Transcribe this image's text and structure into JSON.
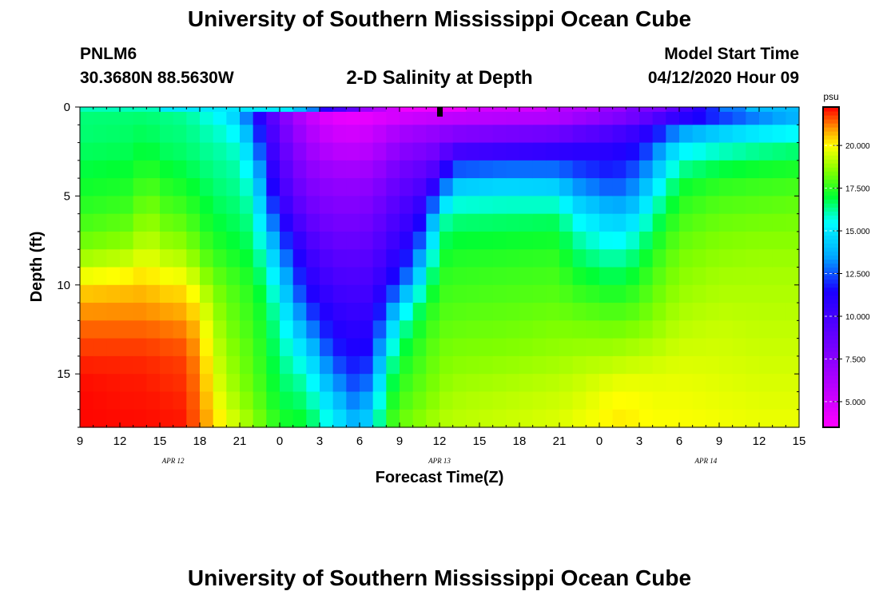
{
  "header": {
    "title": "University of Southern Mississippi Ocean Cube",
    "station": "PNLM6",
    "coords": "30.3680N 88.5630W",
    "subtitle": "2-D Salinity at Depth",
    "start_label": "Model Start Time",
    "start_value": "04/12/2020 Hour 09"
  },
  "footer": {
    "title": "University of Southern Mississippi Ocean Cube"
  },
  "chart_data": {
    "type": "heatmap",
    "title": "2-D Salinity at Depth",
    "xlabel": "Forecast Time(Z)",
    "ylabel": "Depth (ft)",
    "x_tick_labels": [
      "9",
      "12",
      "15",
      "18",
      "21",
      "0",
      "3",
      "6",
      "9",
      "12",
      "15",
      "18",
      "21",
      "0",
      "3",
      "6",
      "9",
      "12",
      "15"
    ],
    "x_range_hours": [
      0,
      54
    ],
    "date_labels": [
      {
        "label": "APR 12",
        "at_hour": 7
      },
      {
        "label": "APR 13",
        "at_hour": 27
      },
      {
        "label": "APR 14",
        "at_hour": 47
      }
    ],
    "y_ticks": [
      0,
      5,
      10,
      15
    ],
    "ylim": [
      0,
      18
    ],
    "y_inverted": true,
    "colorbar": {
      "unit": "psu",
      "range": [
        3.5,
        22.25
      ],
      "ticks": [
        "5.000",
        "7.500",
        "10.000",
        "12.500",
        "15.000",
        "17.500",
        "20.000"
      ],
      "tick_values": [
        5,
        7.5,
        10,
        12.5,
        15,
        17.5,
        20
      ],
      "colors": [
        "#ff00ff",
        "#8a00ff",
        "#1a00ff",
        "#00a6ff",
        "#00ffff",
        "#00ff33",
        "#80ff00",
        "#ffff00",
        "#ff9900",
        "#ff0000"
      ],
      "color_stops": [
        3.5,
        7.5,
        11.5,
        13.5,
        15.5,
        17.0,
        18.5,
        20.0,
        21.0,
        22.25
      ]
    },
    "surface_salinity": [
      16,
      16,
      16,
      16,
      16,
      16,
      15,
      15,
      15,
      15,
      15,
      15,
      15,
      15,
      15,
      15,
      14,
      13,
      11,
      10,
      9,
      7,
      6,
      5,
      4,
      4,
      4,
      4,
      4,
      5,
      5,
      5,
      5,
      5,
      5,
      6,
      6,
      6,
      6,
      7,
      7,
      8,
      8,
      8,
      9,
      10,
      11,
      12,
      13,
      13,
      14,
      14,
      14,
      14,
      15
    ],
    "profiles": [
      {
        "hour": 0,
        "salinity": [
          16.5,
          16.5,
          16.6,
          16.8,
          17.0,
          17.3,
          17.6,
          18.0,
          18.5,
          19.3,
          20.3,
          20.8,
          21.3,
          21.6,
          21.9,
          22.1,
          22.2,
          22.2,
          22.2
        ]
      },
      {
        "hour": 4,
        "salinity": [
          16.5,
          16.6,
          16.7,
          16.9,
          17.2,
          17.5,
          17.9,
          18.4,
          18.9,
          19.7,
          20.5,
          20.9,
          21.3,
          21.6,
          21.9,
          22.0,
          22.1,
          22.1,
          22.2
        ]
      },
      {
        "hour": 5,
        "salinity": [
          16.5,
          16.7,
          16.9,
          17.3,
          17.8,
          18.3,
          18.8,
          19.2,
          19.6,
          20.1,
          20.6,
          20.9,
          21.3,
          21.6,
          21.9,
          22.0,
          22.1,
          22.1,
          22.2
        ]
      },
      {
        "hour": 6,
        "salinity": [
          16.4,
          16.5,
          16.6,
          16.9,
          17.3,
          17.7,
          18.1,
          18.5,
          19.0,
          19.6,
          20.3,
          20.7,
          21.2,
          21.5,
          21.8,
          21.9,
          22.0,
          22.1,
          22.1
        ]
      },
      {
        "hour": 8,
        "salinity": [
          16.2,
          16.4,
          16.5,
          16.7,
          17.0,
          17.4,
          17.8,
          18.3,
          18.8,
          19.4,
          20.2,
          20.6,
          21.0,
          21.4,
          21.7,
          21.8,
          21.9,
          22.0,
          22.1
        ]
      },
      {
        "hour": 9,
        "salinity": [
          15.8,
          16.1,
          16.3,
          16.5,
          16.7,
          17.0,
          17.3,
          17.6,
          18.0,
          18.5,
          19.3,
          19.8,
          20.3,
          20.6,
          20.8,
          21.0,
          21.1,
          21.2,
          21.2
        ]
      },
      {
        "hour": 10,
        "salinity": [
          15.4,
          15.8,
          16.1,
          16.3,
          16.5,
          16.7,
          16.9,
          17.2,
          17.6,
          18.0,
          18.5,
          18.8,
          19.1,
          19.4,
          19.6,
          19.8,
          20.0,
          20.3,
          20.7
        ]
      },
      {
        "hour": 11,
        "salinity": [
          14.8,
          15.5,
          16.0,
          16.2,
          16.3,
          16.5,
          16.7,
          16.9,
          17.2,
          17.6,
          18.0,
          18.2,
          18.4,
          18.6,
          18.8,
          19.0,
          19.2,
          19.5,
          19.9
        ]
      },
      {
        "hour": 12,
        "salinity": [
          13.5,
          14.8,
          15.5,
          16.0,
          16.2,
          16.4,
          16.6,
          16.8,
          17.0,
          17.4,
          17.7,
          17.9,
          18.0,
          18.2,
          18.4,
          18.5,
          18.7,
          19.0,
          19.4
        ]
      },
      {
        "hour": 13,
        "salinity": [
          11.5,
          12.5,
          13.5,
          14.5,
          15.2,
          15.7,
          16.1,
          16.4,
          16.7,
          17.0,
          17.3,
          17.5,
          17.6,
          17.8,
          17.9,
          18.0,
          18.2,
          18.4,
          18.8
        ]
      },
      {
        "hour": 14,
        "salinity": [
          10.0,
          10.5,
          11.0,
          11.5,
          12.2,
          13.0,
          13.8,
          14.6,
          15.3,
          15.9,
          16.4,
          16.8,
          17.0,
          17.1,
          17.3,
          17.4,
          17.6,
          17.8,
          18.1
        ]
      },
      {
        "hour": 15,
        "salinity": [
          8.0,
          8.5,
          9.0,
          9.5,
          9.9,
          10.5,
          11.2,
          12.2,
          13.2,
          14.0,
          14.8,
          15.4,
          15.9,
          16.2,
          16.4,
          16.6,
          16.8,
          17.0,
          17.5
        ]
      },
      {
        "hour": 17,
        "salinity": [
          5.5,
          6.0,
          6.7,
          7.2,
          7.7,
          8.2,
          8.8,
          9.5,
          10.2,
          10.8,
          11.3,
          12.0,
          13.0,
          14.0,
          15.0,
          15.8,
          16.3,
          16.7,
          17.2
        ]
      },
      {
        "hour": 19,
        "salinity": [
          4.0,
          4.8,
          5.5,
          6.3,
          7.0,
          7.5,
          8.0,
          8.5,
          9.0,
          9.5,
          10.0,
          10.5,
          11.0,
          11.5,
          12.2,
          13.0,
          14.0,
          14.8,
          15.5
        ]
      },
      {
        "hour": 21,
        "salinity": [
          3.8,
          4.6,
          5.4,
          6.2,
          7.0,
          7.5,
          8.0,
          8.5,
          9.0,
          9.4,
          9.8,
          10.2,
          10.6,
          11.0,
          11.4,
          11.8,
          12.3,
          13.0,
          13.8
        ]
      },
      {
        "hour": 22,
        "salinity": [
          4.0,
          5.0,
          5.8,
          6.5,
          7.2,
          7.8,
          8.3,
          8.8,
          9.2,
          9.6,
          10.0,
          10.5,
          11.0,
          11.5,
          12.0,
          13.0,
          14.0,
          14.8,
          15.4
        ]
      },
      {
        "hour": 23,
        "salinity": [
          4.1,
          5.5,
          6.4,
          7.2,
          8.0,
          8.6,
          9.1,
          9.6,
          10.1,
          10.6,
          11.3,
          12.2,
          13.3,
          14.3,
          15.3,
          16.0,
          16.6,
          17.1,
          17.5
        ]
      },
      {
        "hour": 24,
        "salinity": [
          4.2,
          6.0,
          7.0,
          8.0,
          8.6,
          9.2,
          9.8,
          10.3,
          10.9,
          11.5,
          12.5,
          14.0,
          15.4,
          16.3,
          16.9,
          17.3,
          17.6,
          17.9,
          18.2
        ]
      },
      {
        "hour": 25,
        "salinity": [
          4.3,
          6.3,
          7.3,
          8.3,
          9.0,
          9.7,
          10.4,
          11.0,
          11.8,
          12.8,
          14.2,
          15.8,
          16.7,
          17.2,
          17.5,
          17.8,
          18.0,
          18.3,
          18.6
        ]
      },
      {
        "hour": 26,
        "salinity": [
          4.4,
          6.5,
          7.5,
          8.6,
          9.4,
          10.4,
          11.6,
          12.8,
          14.0,
          15.2,
          16.2,
          17.0,
          17.4,
          17.7,
          17.9,
          18.1,
          18.3,
          18.5,
          18.8
        ]
      },
      {
        "hour": 27,
        "salinity": [
          4.5,
          6.7,
          7.8,
          9.2,
          10.5,
          13.0,
          15.5,
          16.3,
          16.9,
          17.3,
          17.6,
          17.8,
          18.0,
          18.2,
          18.4,
          18.5,
          18.7,
          18.9,
          19.1
        ]
      },
      {
        "hour": 28,
        "salinity": [
          4.6,
          6.9,
          8.5,
          11.5,
          13.5,
          15.2,
          16.3,
          16.8,
          17.2,
          17.5,
          17.7,
          17.9,
          18.1,
          18.3,
          18.5,
          18.7,
          18.9,
          19.1,
          19.2
        ]
      },
      {
        "hour": 32,
        "salinity": [
          4.8,
          7.3,
          9.0,
          11.8,
          13.8,
          15.4,
          16.4,
          16.9,
          17.3,
          17.6,
          17.8,
          18.0,
          18.2,
          18.4,
          18.6,
          18.9,
          19.1,
          19.3,
          19.4
        ]
      },
      {
        "hour": 36,
        "salinity": [
          5.0,
          7.5,
          9.5,
          12.0,
          13.6,
          15.3,
          16.5,
          17.0,
          17.4,
          17.7,
          17.9,
          18.1,
          18.4,
          18.6,
          18.8,
          19.1,
          19.3,
          19.5,
          19.6
        ]
      },
      {
        "hour": 37,
        "salinity": [
          5.5,
          8.0,
          10.0,
          11.8,
          12.8,
          14.0,
          15.3,
          16.0,
          16.6,
          17.0,
          17.5,
          17.9,
          18.3,
          18.6,
          18.9,
          19.2,
          19.4,
          19.6,
          19.8
        ]
      },
      {
        "hour": 39,
        "salinity": [
          6.2,
          8.6,
          10.3,
          11.6,
          12.2,
          13.5,
          14.5,
          15.3,
          16.0,
          16.6,
          17.2,
          17.7,
          18.2,
          18.6,
          19.0,
          19.4,
          19.7,
          19.9,
          20.0
        ]
      },
      {
        "hour": 40,
        "salinity": [
          6.6,
          9.0,
          10.6,
          11.5,
          12.0,
          13.0,
          14.0,
          15.0,
          15.8,
          16.4,
          17.0,
          17.6,
          18.1,
          18.6,
          19.0,
          19.5,
          19.9,
          20.1,
          20.2
        ]
      },
      {
        "hour": 41,
        "salinity": [
          7.0,
          9.3,
          10.9,
          11.8,
          12.4,
          13.3,
          14.2,
          15.2,
          16.0,
          16.6,
          17.2,
          17.7,
          18.2,
          18.7,
          19.1,
          19.6,
          19.9,
          20.1,
          20.2
        ]
      },
      {
        "hour": 42,
        "salinity": [
          7.6,
          9.8,
          11.4,
          12.2,
          13.0,
          13.9,
          14.8,
          15.7,
          16.5,
          17.0,
          17.5,
          17.9,
          18.3,
          18.8,
          19.2,
          19.6,
          19.9,
          20.0,
          20.1
        ]
      },
      {
        "hour": 43,
        "salinity": [
          8.3,
          10.6,
          12.2,
          13.2,
          14.3,
          15.3,
          16.2,
          16.8,
          17.3,
          17.7,
          18.0,
          18.3,
          18.6,
          18.9,
          19.3,
          19.6,
          19.8,
          19.9,
          20.0
        ]
      },
      {
        "hour": 45,
        "salinity": [
          9.5,
          12.2,
          14.8,
          15.8,
          16.8,
          17.3,
          17.7,
          18.0,
          18.3,
          18.5,
          18.7,
          18.9,
          19.1,
          19.3,
          19.5,
          19.7,
          19.8,
          19.9,
          20.0
        ]
      },
      {
        "hour": 48,
        "salinity": [
          10.8,
          13.5,
          15.4,
          16.5,
          17.3,
          17.8,
          18.1,
          18.4,
          18.6,
          18.8,
          19.0,
          19.1,
          19.3,
          19.4,
          19.5,
          19.6,
          19.7,
          19.8,
          19.9
        ]
      },
      {
        "hour": 51,
        "salinity": [
          12.0,
          14.3,
          15.9,
          16.8,
          17.5,
          17.9,
          18.2,
          18.5,
          18.7,
          18.9,
          19.0,
          19.1,
          19.2,
          19.3,
          19.4,
          19.5,
          19.6,
          19.7,
          19.8
        ]
      },
      {
        "hour": 54,
        "salinity": [
          13.0,
          14.8,
          16.2,
          17.0,
          17.6,
          18.0,
          18.3,
          18.5,
          18.7,
          18.9,
          19.0,
          19.1,
          19.2,
          19.3,
          19.4,
          19.5,
          19.6,
          19.7,
          19.8
        ]
      }
    ],
    "current_time_marker_hour": 27
  }
}
